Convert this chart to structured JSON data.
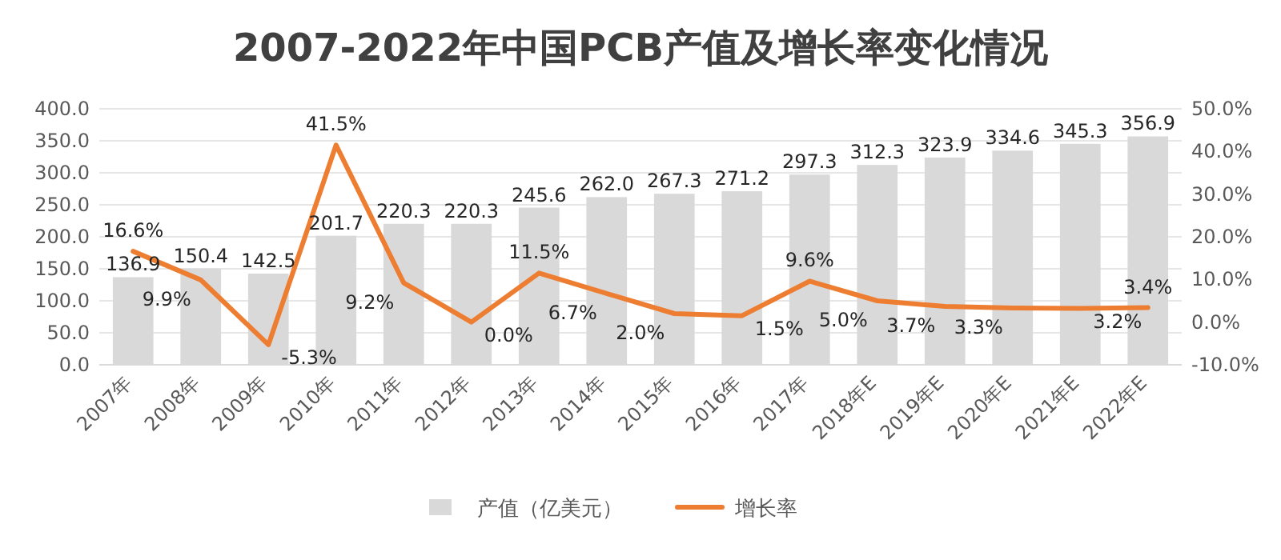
{
  "chart_data": {
    "type": "bar",
    "title": "2007-2022年中国PCB产值及增长率变化情况",
    "categories": [
      "2007年",
      "2008年",
      "2009年",
      "2010年",
      "2011年",
      "2012年",
      "2013年",
      "2014年",
      "2015年",
      "2016年",
      "2017年",
      "2018年E",
      "2019年E",
      "2020年E",
      "2021年E",
      "2022年E"
    ],
    "series": [
      {
        "name": "产值（亿美元）",
        "type": "bar",
        "color": "#d9d9d9",
        "values": [
          136.9,
          150.4,
          142.5,
          201.7,
          220.3,
          220.3,
          245.6,
          262.0,
          267.3,
          271.2,
          297.3,
          312.3,
          323.9,
          334.6,
          345.3,
          356.9
        ],
        "value_labels": [
          "136.9",
          "150.4",
          "142.5",
          "201.7",
          "220.3",
          "220.3",
          "245.6",
          "262.0",
          "267.3",
          "271.2",
          "297.3",
          "312.3",
          "323.9",
          "334.6",
          "345.3",
          "356.9"
        ]
      },
      {
        "name": "增长率",
        "type": "line",
        "axis": "y2",
        "color": "#ed7d31",
        "values": [
          16.6,
          9.9,
          -5.3,
          41.5,
          9.2,
          0.0,
          11.5,
          6.7,
          2.0,
          1.5,
          9.6,
          5.0,
          3.7,
          3.3,
          3.2,
          3.4
        ],
        "value_labels": [
          "16.6%",
          "9.9%",
          "-5.3%",
          "41.5%",
          "9.2%",
          "0.0%",
          "11.5%",
          "6.7%",
          "2.0%",
          "1.5%",
          "9.6%",
          "5.0%",
          "3.7%",
          "3.3%",
          "3.2%",
          "3.4%"
        ]
      }
    ],
    "ylim": [
      0,
      400
    ],
    "yticks": [
      {
        "value": 0,
        "label": "0.0"
      },
      {
        "value": 50,
        "label": "50.0"
      },
      {
        "value": 100,
        "label": "100.0"
      },
      {
        "value": 150,
        "label": "150.0"
      },
      {
        "value": 200,
        "label": "200.0"
      },
      {
        "value": 250,
        "label": "250.0"
      },
      {
        "value": 300,
        "label": "300.0"
      },
      {
        "value": 350,
        "label": "350.0"
      },
      {
        "value": 400,
        "label": "400.0"
      }
    ],
    "y2lim": [
      -10,
      50
    ],
    "y2ticks": [
      {
        "value": -10,
        "label": "-10.0%"
      },
      {
        "value": 0,
        "label": "0.0%"
      },
      {
        "value": 10,
        "label": "10.0%"
      },
      {
        "value": 20,
        "label": "20.0%"
      },
      {
        "value": 30,
        "label": "30.0%"
      },
      {
        "value": 40,
        "label": "40.0%"
      },
      {
        "value": 50,
        "label": "50.0%"
      }
    ],
    "grid": "y",
    "legend": "bottom"
  }
}
